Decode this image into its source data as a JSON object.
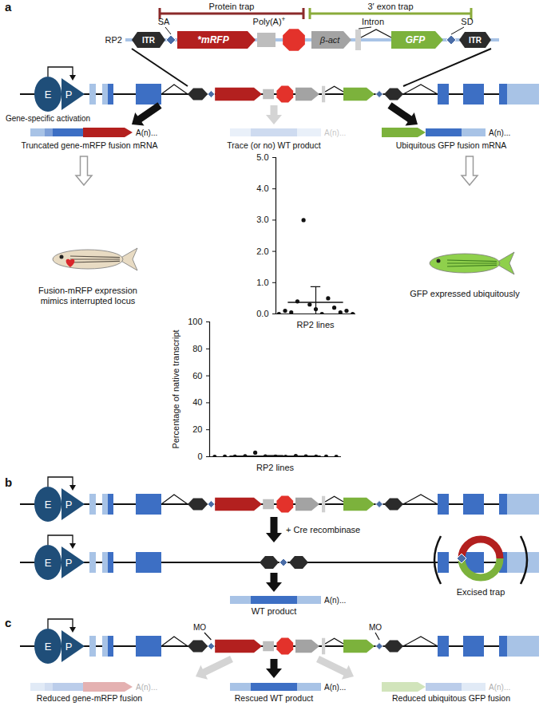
{
  "panels": [
    {
      "label": "a",
      "brackets": [
        "Protein trap",
        "3′ exon trap"
      ],
      "construct": {
        "name": "RP2",
        "elements": [
          "ITR",
          "*mRFP",
          "Poly(A)+",
          "β-act",
          "Intron",
          "GFP",
          "ITR"
        ],
        "sites": [
          "SA",
          "SD"
        ]
      },
      "enhancer": "E",
      "promoter": "P",
      "activation_label": "Gene-specific activation",
      "transcript_tail": "A(n)...",
      "products": [
        "Truncated gene-mRFP fusion mRNA",
        "Trace (or no) WT product",
        "Ubiquitous GFP fusion mRNA"
      ],
      "outcomes": [
        [
          "Fusion-mRFP expression",
          "mimics interrupted locus"
        ],
        [
          "GFP expressed ubiquitously"
        ]
      ]
    },
    {
      "label": "b",
      "treatment": "+ Cre recombinase",
      "excised": "Excised trap",
      "product": "WT product"
    },
    {
      "label": "c",
      "morpholino": "MO",
      "products": [
        "Reduced gene-mRFP fusion",
        "Rescued WT product",
        "Reduced ubiquitous GFP fusion"
      ]
    }
  ],
  "chart_data": [
    {
      "type": "scatter",
      "ylabel": "Percentage of native transcript",
      "xlabel": "RP2 lines",
      "values": [
        0.0,
        0.1,
        0.05,
        0.4,
        3.0,
        0.3,
        0.15,
        0.0,
        0.5,
        0.2,
        0.05,
        0.1,
        0.0
      ],
      "mean": 0.37,
      "error": 0.5,
      "ylim": [
        0,
        100
      ],
      "yticks": [
        0,
        20,
        40,
        60,
        80,
        100
      ]
    },
    {
      "type": "scatter",
      "xlabel": "RP2 lines",
      "values": [
        0.0,
        0.1,
        0.05,
        0.4,
        3.0,
        0.3,
        0.15,
        0.0,
        0.5,
        0.2,
        0.05,
        0.1,
        0.0
      ],
      "mean": 0.37,
      "error": 0.5,
      "ylim": [
        0,
        5
      ],
      "yticks": [
        0,
        1,
        2,
        3,
        4,
        5
      ]
    }
  ]
}
